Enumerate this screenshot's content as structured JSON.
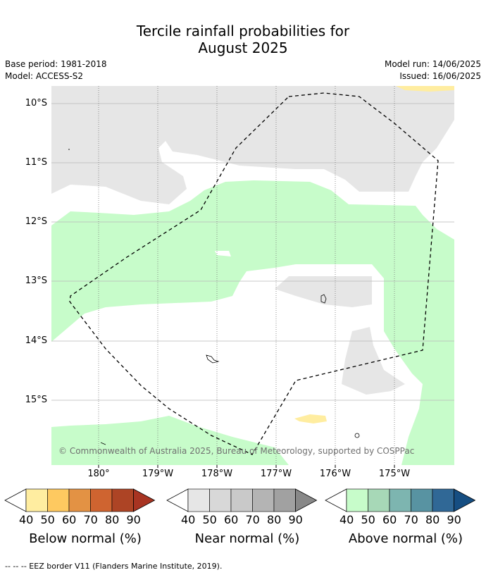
{
  "title_line1": "Tercile rainfall probabilities for",
  "title_line2": "August 2025",
  "base_period": "Base period: 1981-2018",
  "model": "Model: ACCESS-S2",
  "model_run": "Model run: 14/06/2025",
  "issued": "Issued: 16/06/2025",
  "lat_labels": [
    "10°S",
    "11°S",
    "12°S",
    "13°S",
    "14°S",
    "15°S"
  ],
  "lon_labels": [
    "180°",
    "179°W",
    "178°W",
    "177°W",
    "176°W",
    "175°W"
  ],
  "credit": "© Commonwealth of Australia 2025, Bureau of Meteorology, supported by COSPPac",
  "colorbars": [
    {
      "title": "Below normal (%)",
      "ticks": [
        "40",
        "50",
        "60",
        "70",
        "80",
        "90"
      ],
      "colors": [
        "#ffeda0",
        "#fec960",
        "#e39244",
        "#cf6430",
        "#ad4425",
        "#a83422"
      ]
    },
    {
      "title": "Near normal (%)",
      "ticks": [
        "40",
        "50",
        "60",
        "70",
        "80",
        "90"
      ],
      "colors": [
        "#e6e6e6",
        "#d8d8d8",
        "#c9c9c9",
        "#b4b4b4",
        "#a1a1a1",
        "#888888"
      ]
    },
    {
      "title": "Above normal (%)",
      "ticks": [
        "40",
        "50",
        "60",
        "70",
        "80",
        "90"
      ],
      "colors": [
        "#c7fcca",
        "#a7d8b7",
        "#7db5b0",
        "#5893a2",
        "#306896",
        "#164e82"
      ]
    }
  ],
  "footer": "--  --  -- EEZ border V11 (Flanders Marine Institute, 2019)."
}
